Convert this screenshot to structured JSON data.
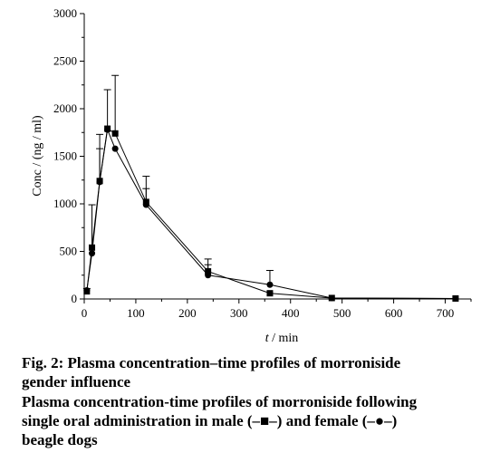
{
  "chart_data": {
    "type": "line",
    "xlabel_italic": "t",
    "xlabel_unit": " / min",
    "ylabel": "Conc / (ng / ml)",
    "xlim": [
      0,
      750
    ],
    "ylim": [
      0,
      3000
    ],
    "x_ticks": [
      0,
      100,
      200,
      300,
      400,
      500,
      600,
      700
    ],
    "y_ticks": [
      0,
      500,
      1000,
      1500,
      2000,
      2500,
      3000
    ],
    "grid": false,
    "series": [
      {
        "marker": "square",
        "x": [
          5,
          15,
          30,
          45,
          60,
          120,
          240,
          360,
          480,
          720
        ],
        "y": [
          80,
          540,
          1240,
          1790,
          1740,
          1020,
          290,
          60,
          10,
          5
        ],
        "err": [
          30,
          450,
          490,
          410,
          610,
          270,
          130,
          0,
          0,
          0
        ]
      },
      {
        "marker": "circle",
        "x": [
          5,
          15,
          30,
          45,
          60,
          120,
          240,
          360,
          480,
          720
        ],
        "y": [
          90,
          480,
          1230,
          1780,
          1580,
          990,
          250,
          150,
          10,
          5
        ],
        "err": [
          0,
          0,
          350,
          0,
          0,
          170,
          110,
          150,
          0,
          0
        ]
      }
    ]
  },
  "caption": {
    "title_lines": [
      "Fig. 2: Plasma concentration–time profiles of morroniside",
      "gender influence"
    ],
    "desc_lines": [
      "Plasma concentration-time profiles of morroniside following",
      "single oral administration in male (–■–) and female (–●–)",
      "beagle dogs"
    ]
  }
}
